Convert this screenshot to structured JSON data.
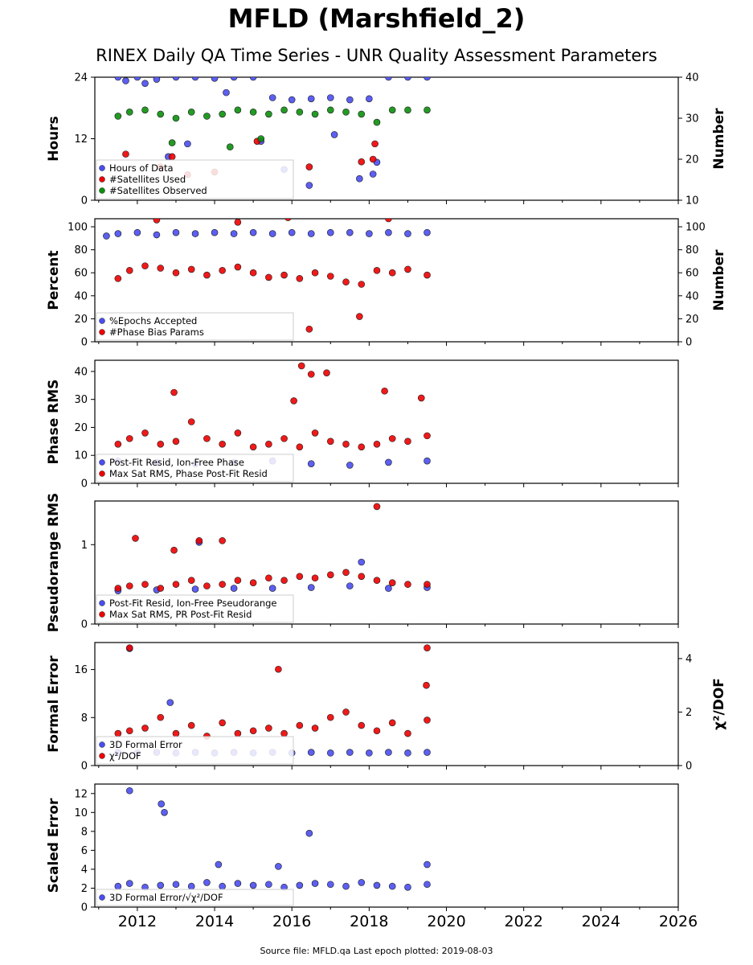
{
  "page": {
    "title": "MFLD (Marshfield_2)",
    "subtitle": "RINEX Daily QA Time Series - UNR Quality Assessment Parameters",
    "footer": "Source file: MFLD.qa Last epoch plotted: 2019-08-03"
  },
  "colors": {
    "blue": "#4a4ef0",
    "red": "#ee0000",
    "green": "#0b8f0b",
    "edge": "#1a1a1a"
  },
  "chart_data": [
    {
      "type": "scatter",
      "panel": "hours",
      "ylabel": "Hours",
      "y2label": "Number",
      "xlim": [
        2010.9,
        2026
      ],
      "ylim": [
        0,
        24
      ],
      "yticks": [
        0,
        12,
        24
      ],
      "y2lim": [
        10,
        40
      ],
      "y2ticks": [
        10,
        20,
        30,
        40
      ],
      "legend_loc": "lower-left",
      "series": [
        {
          "name": "Hours of Data",
          "color": "blue",
          "axis": "left",
          "x": [
            2011.5,
            2011.7,
            2012.0,
            2012.5,
            2013.0,
            2013.5,
            2014.0,
            2014.5,
            2015.0,
            2015.5,
            2016.0,
            2016.5,
            2017.0,
            2017.5,
            2018.0,
            2018.5,
            2019.0,
            2019.5,
            2012.8,
            2013.3,
            2015.2,
            2015.8,
            2016.45,
            2017.1,
            2017.75,
            2018.1,
            2018.2,
            2014.3,
            2012.2
          ],
          "y": [
            24,
            23.3,
            24,
            23.6,
            24,
            24,
            23.8,
            24,
            24,
            20,
            19.6,
            19.8,
            20,
            19.6,
            19.8,
            24,
            24,
            24,
            8.5,
            11,
            11.5,
            6,
            2.9,
            12.8,
            4.2,
            5.1,
            7.4,
            21,
            22.8
          ]
        },
        {
          "name": "#Satellites Used",
          "color": "red",
          "axis": "left",
          "x": [
            2011.7,
            2012.6,
            2013.3,
            2014.0,
            2015.1,
            2016.45,
            2017.8,
            2018.1,
            2018.15,
            2012.9
          ],
          "y": [
            9,
            6.5,
            5,
            5.5,
            11.5,
            6.5,
            7.5,
            8,
            11,
            8.5
          ]
        },
        {
          "name": "#Satellites Observed",
          "color": "green",
          "axis": "right",
          "x": [
            2011.5,
            2011.8,
            2012.2,
            2012.6,
            2013.0,
            2013.4,
            2013.8,
            2014.2,
            2014.6,
            2015.0,
            2015.4,
            2015.8,
            2016.2,
            2016.6,
            2017.0,
            2017.4,
            2017.8,
            2018.2,
            2018.6,
            2019.0,
            2019.5,
            2012.9,
            2014.4,
            2015.2
          ],
          "y": [
            30.5,
            31.5,
            32,
            31,
            30,
            31.5,
            30.5,
            31,
            32,
            31.5,
            31,
            32,
            31.5,
            31,
            32,
            31.5,
            31,
            29,
            32,
            32,
            32,
            24,
            23,
            25
          ]
        }
      ]
    },
    {
      "type": "scatter",
      "panel": "percent",
      "ylabel": "Percent",
      "y2label": "Number",
      "xlim": [
        2010.9,
        2026
      ],
      "ylim": [
        0,
        107
      ],
      "yticks": [
        0,
        20,
        40,
        60,
        80,
        100
      ],
      "y2lim": [
        0,
        107
      ],
      "y2ticks": [
        0,
        20,
        40,
        60,
        80,
        100
      ],
      "legend_loc": "lower-left",
      "series": [
        {
          "name": "%Epochs Accepted",
          "color": "blue",
          "axis": "left",
          "x": [
            2011.5,
            2012.0,
            2012.5,
            2013.0,
            2013.5,
            2014.0,
            2014.5,
            2015.0,
            2015.5,
            2016.0,
            2016.5,
            2017.0,
            2017.5,
            2018.0,
            2018.5,
            2019.0,
            2019.5,
            2011.2
          ],
          "y": [
            94,
            95,
            93,
            95,
            94,
            95,
            94,
            95,
            94,
            95,
            94,
            95,
            95,
            94,
            95,
            94,
            95,
            92
          ]
        },
        {
          "name": "#Phase Bias Params",
          "color": "red",
          "axis": "left",
          "x": [
            2011.5,
            2011.8,
            2012.2,
            2012.6,
            2013.0,
            2013.4,
            2013.8,
            2014.2,
            2014.6,
            2015.0,
            2015.4,
            2015.8,
            2016.2,
            2016.6,
            2017.0,
            2017.4,
            2017.8,
            2018.2,
            2018.6,
            2019.0,
            2019.5,
            2012.5,
            2014.6,
            2015.9,
            2016.45,
            2017.75,
            2018.5
          ],
          "y": [
            55,
            62,
            66,
            64,
            60,
            63,
            58,
            62,
            65,
            60,
            56,
            58,
            55,
            60,
            57,
            52,
            50,
            62,
            60,
            63,
            58,
            106,
            104,
            108,
            11,
            22,
            107
          ]
        }
      ]
    },
    {
      "type": "scatter",
      "panel": "phase_rms",
      "ylabel": "Phase RMS",
      "xlim": [
        2010.9,
        2026
      ],
      "ylim": [
        0,
        44
      ],
      "yticks": [
        0,
        10,
        20,
        30,
        40
      ],
      "legend_loc": "lower-left",
      "series": [
        {
          "name": "Post-Fit Resid, Ion-Free Phase",
          "color": "blue",
          "axis": "left",
          "x": [
            2011.5,
            2012.5,
            2013.5,
            2014.5,
            2015.5,
            2016.5,
            2017.5,
            2018.5,
            2019.5
          ],
          "y": [
            8,
            7.5,
            7,
            7.5,
            8,
            7,
            6.5,
            7.5,
            8
          ]
        },
        {
          "name": "Max Sat RMS, Phase Post-Fit Resid",
          "color": "red",
          "axis": "left",
          "x": [
            2011.5,
            2011.8,
            2012.2,
            2012.6,
            2013.0,
            2013.4,
            2013.8,
            2014.2,
            2014.6,
            2015.0,
            2015.4,
            2015.8,
            2016.2,
            2016.6,
            2017.0,
            2017.4,
            2017.8,
            2018.2,
            2018.6,
            2019.0,
            2019.5,
            2012.95,
            2016.05,
            2016.25,
            2016.5,
            2016.9,
            2018.4,
            2019.35
          ],
          "y": [
            14,
            16,
            18,
            14,
            15,
            22,
            16,
            14,
            18,
            13,
            14,
            16,
            13,
            18,
            15,
            14,
            13,
            14,
            16,
            15,
            17,
            32.5,
            29.5,
            42,
            39,
            39.5,
            33,
            30.5
          ]
        }
      ]
    },
    {
      "type": "scatter",
      "panel": "pseudorange_rms",
      "ylabel": "Pseudorange RMS",
      "xlim": [
        2010.9,
        2026
      ],
      "ylim": [
        0,
        1.55
      ],
      "yticks": [
        0,
        1
      ],
      "legend_loc": "lower-left",
      "series": [
        {
          "name": "Post-Fit Resid, Ion-Free Pseudorange",
          "color": "blue",
          "axis": "left",
          "x": [
            2011.5,
            2012.5,
            2013.5,
            2013.6,
            2014.5,
            2015.5,
            2016.5,
            2017.5,
            2017.8,
            2018.5,
            2019.5
          ],
          "y": [
            0.42,
            0.43,
            0.44,
            1.03,
            0.45,
            0.45,
            0.46,
            0.48,
            0.78,
            0.45,
            0.46
          ]
        },
        {
          "name": "Max Sat RMS, PR Post-Fit Resid",
          "color": "red",
          "axis": "left",
          "x": [
            2011.5,
            2011.8,
            2012.2,
            2012.6,
            2013.0,
            2013.4,
            2013.8,
            2014.2,
            2014.6,
            2015.0,
            2015.4,
            2015.8,
            2016.2,
            2016.6,
            2017.0,
            2017.4,
            2017.8,
            2018.2,
            2018.6,
            2019.0,
            2019.5,
            2011.95,
            2012.95,
            2013.6,
            2014.2,
            2018.2
          ],
          "y": [
            0.45,
            0.48,
            0.5,
            0.45,
            0.5,
            0.55,
            0.48,
            0.5,
            0.55,
            0.52,
            0.58,
            0.55,
            0.6,
            0.58,
            0.62,
            0.65,
            0.6,
            0.55,
            0.52,
            0.5,
            0.5,
            1.08,
            0.93,
            1.05,
            1.05,
            1.48
          ]
        }
      ]
    },
    {
      "type": "scatter",
      "panel": "formal_error",
      "ylabel": "Formal Error",
      "y2label": "χ²/DOF",
      "xlim": [
        2010.9,
        2026
      ],
      "ylim": [
        0,
        20.5
      ],
      "yticks": [
        0,
        8,
        16
      ],
      "y2lim": [
        0,
        4.6
      ],
      "y2ticks": [
        0,
        2,
        4
      ],
      "legend_loc": "lower-left",
      "series": [
        {
          "name": "3D Formal Error",
          "color": "blue",
          "axis": "left",
          "x": [
            2011.5,
            2012.0,
            2012.5,
            2013.0,
            2013.5,
            2014.0,
            2014.5,
            2015.0,
            2015.5,
            2016.0,
            2016.5,
            2017.0,
            2017.5,
            2018.0,
            2018.5,
            2019.0,
            2019.5,
            2012.85,
            2011.8
          ],
          "y": [
            2.2,
            2.1,
            2.2,
            2.1,
            2.2,
            2.1,
            2.2,
            2.1,
            2.2,
            2.1,
            2.2,
            2.1,
            2.2,
            2.1,
            2.2,
            2.1,
            2.2,
            10.5,
            19.5
          ]
        },
        {
          "name": "χ²/DOF",
          "color": "red",
          "axis": "right",
          "x": [
            2011.5,
            2011.8,
            2012.2,
            2012.6,
            2013.0,
            2013.4,
            2013.8,
            2014.2,
            2014.6,
            2015.0,
            2015.4,
            2015.8,
            2016.2,
            2016.6,
            2017.0,
            2017.4,
            2017.8,
            2018.2,
            2018.6,
            2019.0,
            2019.5,
            2011.8,
            2015.65,
            2019.5,
            2019.48
          ],
          "y": [
            1.2,
            1.3,
            1.4,
            1.8,
            1.2,
            1.5,
            1.1,
            1.6,
            1.2,
            1.3,
            1.4,
            1.2,
            1.5,
            1.4,
            1.8,
            2.0,
            1.5,
            1.3,
            1.6,
            1.2,
            1.7,
            4.4,
            3.6,
            4.4,
            3.0
          ]
        }
      ]
    },
    {
      "type": "scatter",
      "panel": "scaled_error",
      "ylabel": "Scaled Error",
      "xlim": [
        2010.9,
        2026
      ],
      "xticks": [
        2012,
        2014,
        2016,
        2018,
        2020,
        2022,
        2024,
        2026
      ],
      "ylim": [
        0,
        13
      ],
      "yticks": [
        0,
        2,
        4,
        6,
        8,
        10,
        12
      ],
      "legend_loc": "lower-left",
      "series": [
        {
          "name": "3D Formal Error/√χ²/DOF",
          "color": "blue",
          "axis": "left",
          "x": [
            2011.5,
            2011.8,
            2012.2,
            2012.6,
            2013.0,
            2013.4,
            2013.8,
            2014.2,
            2014.6,
            2015.0,
            2015.4,
            2015.8,
            2016.2,
            2016.6,
            2017.0,
            2017.4,
            2017.8,
            2018.2,
            2018.6,
            2019.0,
            2019.5,
            2011.8,
            2012.62,
            2012.7,
            2014.1,
            2015.65,
            2016.45,
            2019.5
          ],
          "y": [
            2.2,
            2.5,
            2.1,
            2.3,
            2.4,
            2.2,
            2.6,
            2.2,
            2.5,
            2.3,
            2.4,
            2.1,
            2.3,
            2.5,
            2.4,
            2.2,
            2.6,
            2.3,
            2.2,
            2.1,
            2.4,
            12.3,
            10.9,
            10.0,
            4.5,
            4.3,
            7.8,
            4.5
          ]
        }
      ]
    }
  ]
}
